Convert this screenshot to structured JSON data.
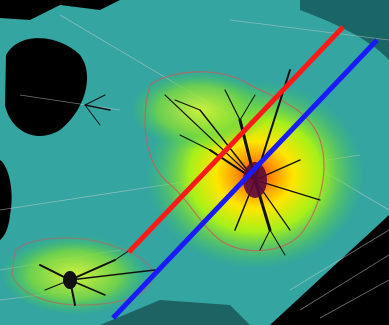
{
  "image": {
    "description_tag": "neuron-density-heatmap-with-overlay-lines",
    "overlay_colors": {
      "red_line": "#ff1a1a",
      "blue_line": "#1a1aff",
      "teal_field": "#3aa7a4",
      "hotspot_yellow": "#f2ff1a",
      "hotspot_red": "#ff2200",
      "background_black": "#000000"
    },
    "icons": [
      "red-line",
      "blue-line",
      "neuron-cluster"
    ]
  }
}
